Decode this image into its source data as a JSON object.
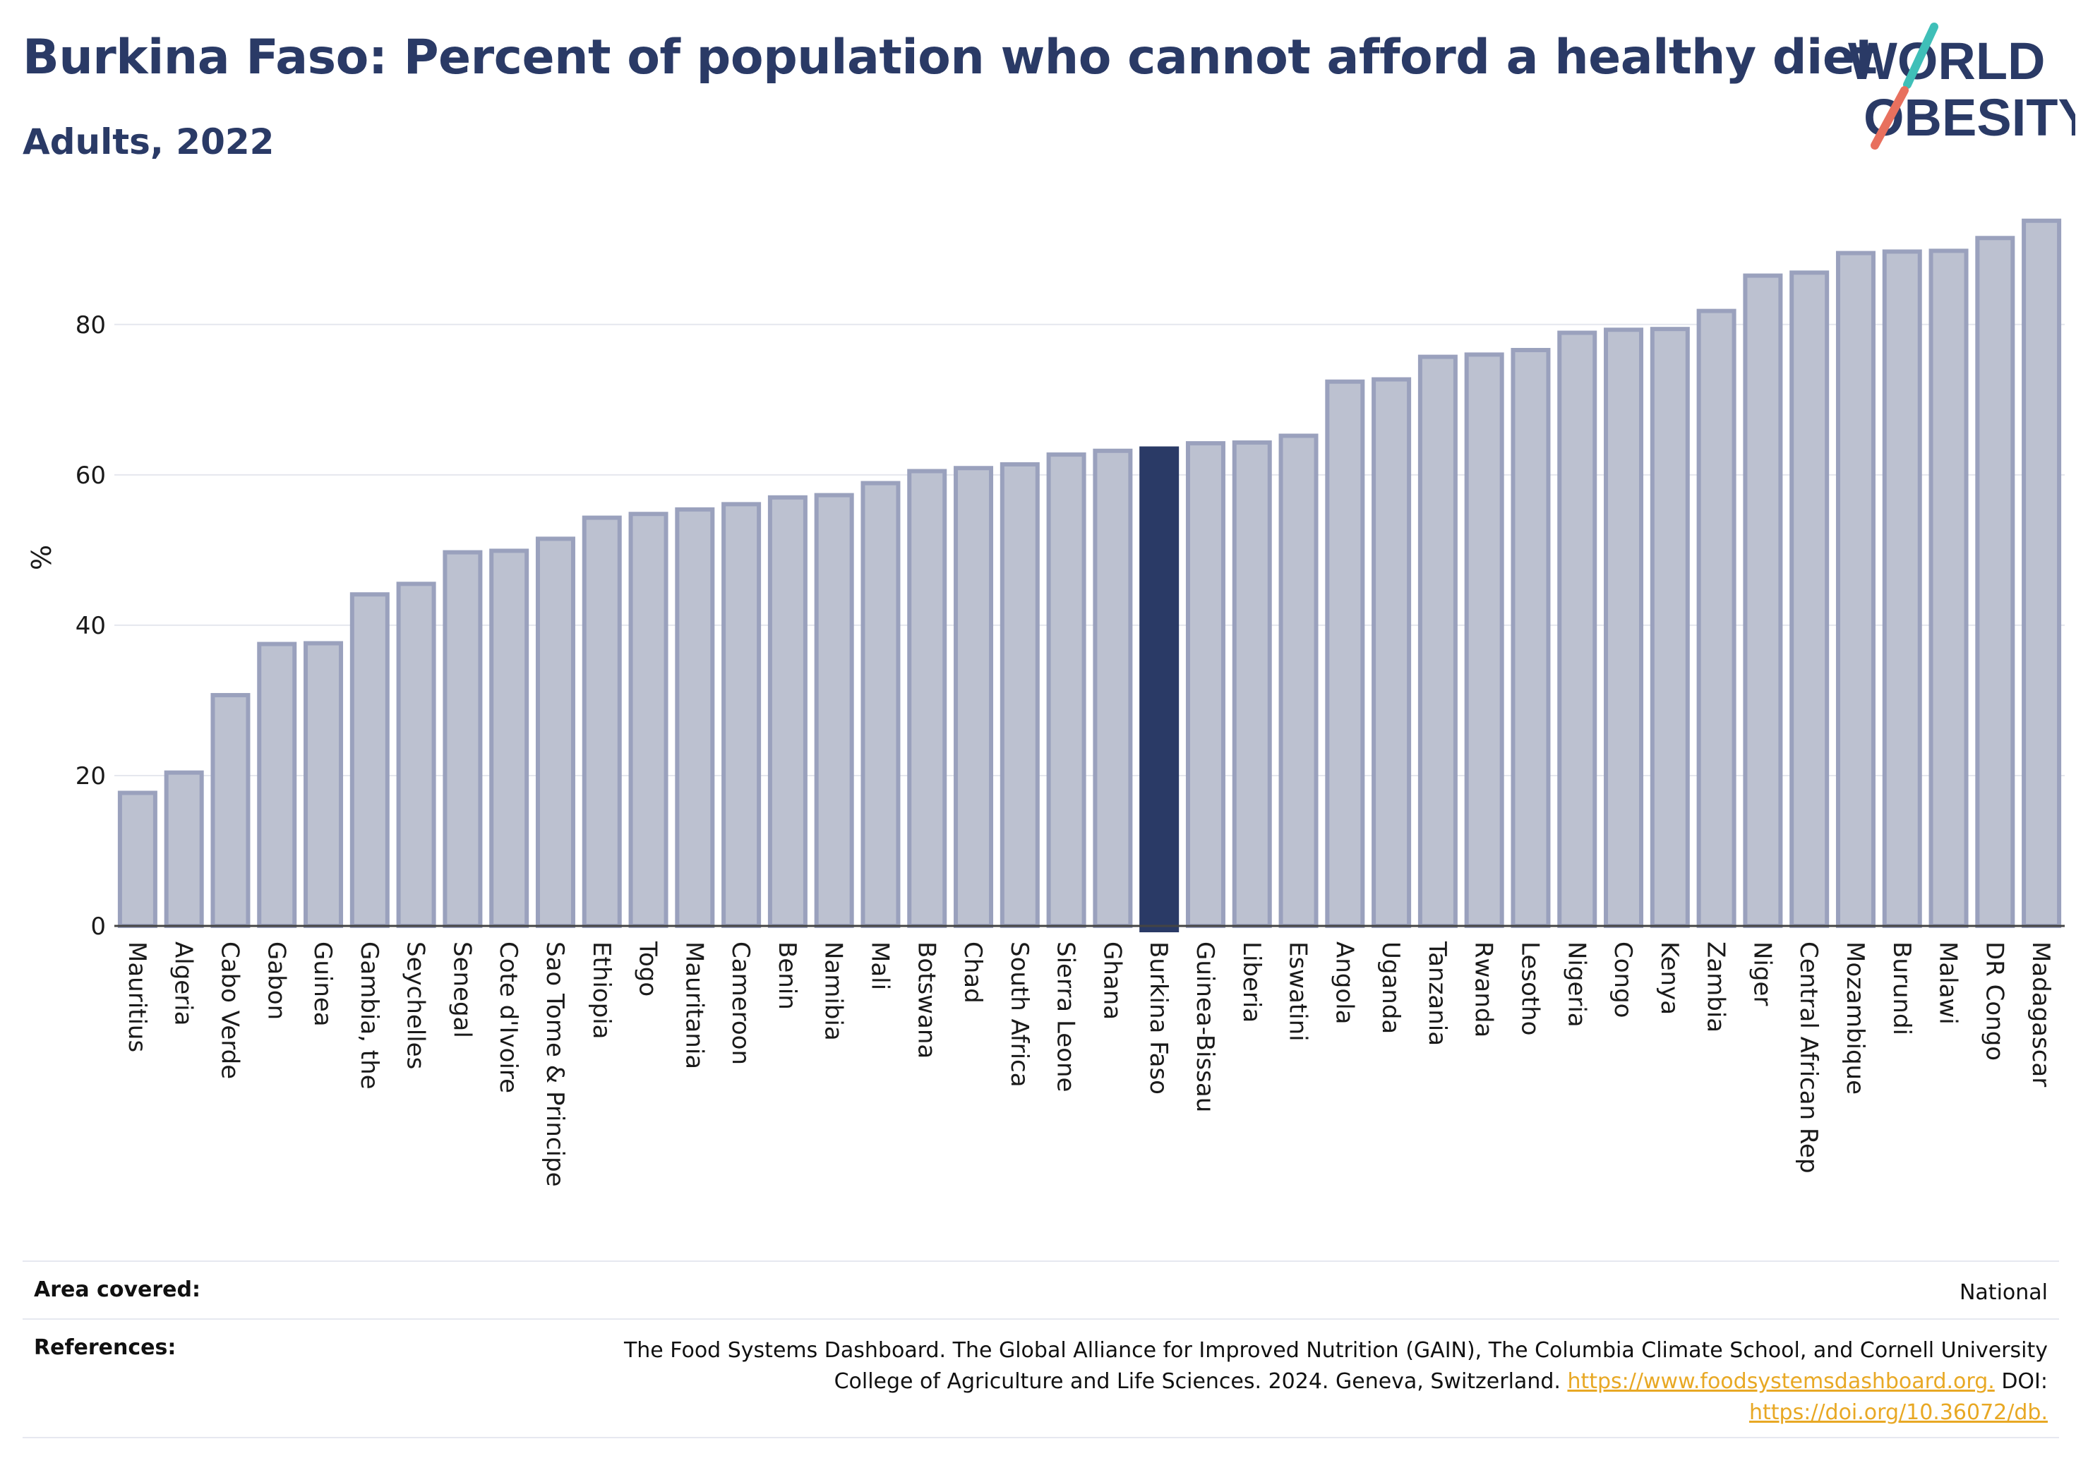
{
  "header": {
    "title": "Burkina Faso: Percent of population who cannot afford a healthy diet",
    "subtitle": "Adults, 2022"
  },
  "logo": {
    "line1": "WORLD",
    "line2": "OBESITY",
    "colors": {
      "text": "#2a3a66",
      "slash_teal": "#3fbfb8",
      "slash_coral": "#e8705e"
    }
  },
  "chart_data": {
    "type": "bar",
    "ylabel": "%",
    "xlabel": "",
    "ylim": [
      0,
      95
    ],
    "yticks": [
      0,
      20,
      40,
      60,
      80
    ],
    "grid": true,
    "highlight": "Burkina Faso",
    "colors": {
      "bar": "#bcc1d0",
      "bar_edge": "#9aa1bd",
      "highlight": "#2a3a66",
      "grid": "#e5e7ee",
      "axis": "#444444"
    },
    "categories": [
      "Mauritius",
      "Algeria",
      "Cabo Verde",
      "Gabon",
      "Guinea",
      "Gambia, the",
      "Seychelles",
      "Senegal",
      "Cote d'Ivoire",
      "Sao Tome & Principe",
      "Ethiopia",
      "Togo",
      "Mauritania",
      "Cameroon",
      "Benin",
      "Namibia",
      "Mali",
      "Botswana",
      "Chad",
      "South Africa",
      "Sierra Leone",
      "Ghana",
      "Burkina Faso",
      "Guinea-Bissau",
      "Liberia",
      "Eswatini",
      "Angola",
      "Uganda",
      "Tanzania",
      "Rwanda",
      "Lesotho",
      "Nigeria",
      "Congo",
      "Kenya",
      "Zambia",
      "Niger",
      "Central African Rep",
      "Mozambique",
      "Burundi",
      "Malawi",
      "DR Congo",
      "Madagascar"
    ],
    "values": [
      17.7,
      20.4,
      30.7,
      37.5,
      37.6,
      44.1,
      45.5,
      49.7,
      49.9,
      51.5,
      54.3,
      54.8,
      55.4,
      56.1,
      57.0,
      57.3,
      58.9,
      60.5,
      60.9,
      61.4,
      62.7,
      63.2,
      63.5,
      64.2,
      64.3,
      65.2,
      72.4,
      72.7,
      75.7,
      76.0,
      76.6,
      78.9,
      79.3,
      79.4,
      81.8,
      86.5,
      86.9,
      89.5,
      89.7,
      89.8,
      91.5,
      93.8
    ]
  },
  "info": {
    "area_key": "Area covered:",
    "area_value": "National",
    "references_key": "References:",
    "references_line1": "The Food Systems Dashboard. The Global Alliance for Improved Nutrition (GAIN), The Columbia Climate School, and Cornell University",
    "references_line2": "College of Agriculture and Life Sciences. 2024. Geneva, Switzerland.",
    "references_link1": "https://www.foodsystemsdashboard.org.",
    "references_doi_label": "DOI:",
    "references_link2": "https://doi.org/10.36072/db."
  }
}
